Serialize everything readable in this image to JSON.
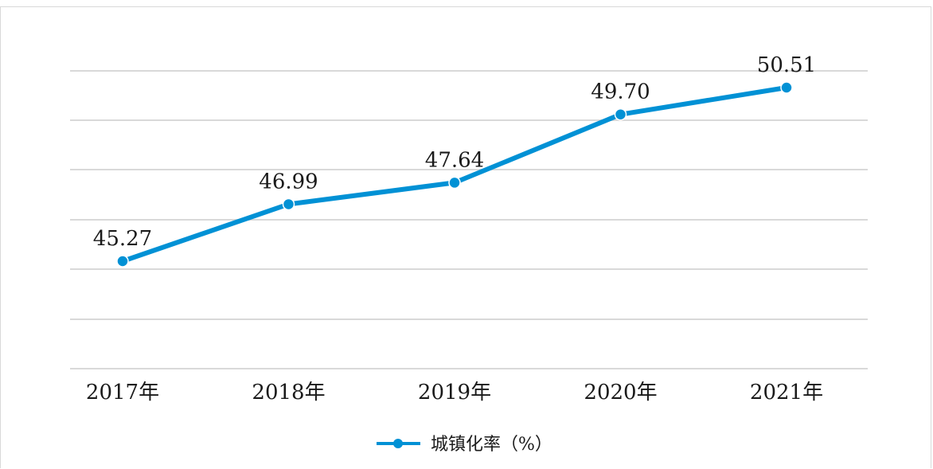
{
  "chart_data": {
    "type": "line",
    "categories": [
      "2017年",
      "2018年",
      "2019年",
      "2020年",
      "2021年"
    ],
    "series": [
      {
        "name": "城镇化率（%）",
        "values": [
          45.27,
          46.99,
          47.64,
          49.7,
          50.51
        ],
        "labels": [
          "45.27",
          "46.99",
          "47.64",
          "49.70",
          "50.51"
        ],
        "color": "#0091d5"
      }
    ],
    "grid": true,
    "legend": "bottom-center"
  }
}
